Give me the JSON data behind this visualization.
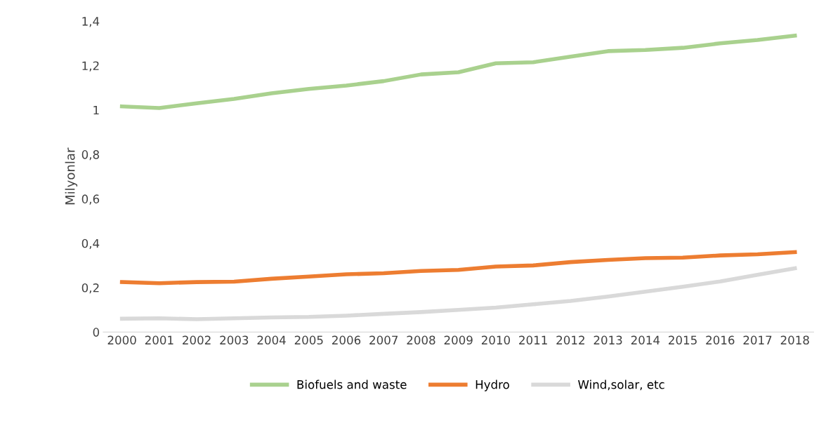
{
  "chart_data": {
    "type": "line",
    "ylabel": "Milyonlar",
    "categories": [
      "2000",
      "2001",
      "2002",
      "2003",
      "2004",
      "2005",
      "2006",
      "2007",
      "2008",
      "2009",
      "2010",
      "2011",
      "2012",
      "2013",
      "2014",
      "2015",
      "2016",
      "2017",
      "2018"
    ],
    "series": [
      {
        "name": "Biofuels and waste",
        "color": "#a9d18e",
        "values": [
          1.016,
          1.009,
          1.03,
          1.05,
          1.075,
          1.095,
          1.11,
          1.13,
          1.16,
          1.17,
          1.21,
          1.215,
          1.24,
          1.265,
          1.27,
          1.28,
          1.3,
          1.315,
          1.335
        ]
      },
      {
        "name": "Hydro",
        "color": "#ed7d31",
        "values": [
          0.225,
          0.22,
          0.225,
          0.227,
          0.24,
          0.25,
          0.26,
          0.265,
          0.275,
          0.28,
          0.295,
          0.3,
          0.315,
          0.325,
          0.333,
          0.335,
          0.345,
          0.35,
          0.36
        ]
      },
      {
        "name": "Wind,solar, etc",
        "color": "#d9d9d9",
        "values": [
          0.06,
          0.062,
          0.058,
          0.062,
          0.066,
          0.068,
          0.074,
          0.082,
          0.09,
          0.1,
          0.11,
          0.125,
          0.14,
          0.16,
          0.182,
          0.204,
          0.228,
          0.258,
          0.287
        ]
      }
    ],
    "ylim": [
      0,
      1.4
    ],
    "yticks": [
      0,
      {
        "value": 0.2,
        "label": "0,2"
      },
      {
        "value": 0.4,
        "label": "0,4"
      },
      {
        "value": 0.6,
        "label": "0,6"
      },
      {
        "value": 0.8,
        "label": "0,8"
      },
      1,
      {
        "value": 1.2,
        "label": "1,2"
      },
      {
        "value": 1.4,
        "label": "1,4"
      }
    ],
    "grid": false,
    "legend": "bottom",
    "line_style": "solid",
    "marker": "none"
  }
}
